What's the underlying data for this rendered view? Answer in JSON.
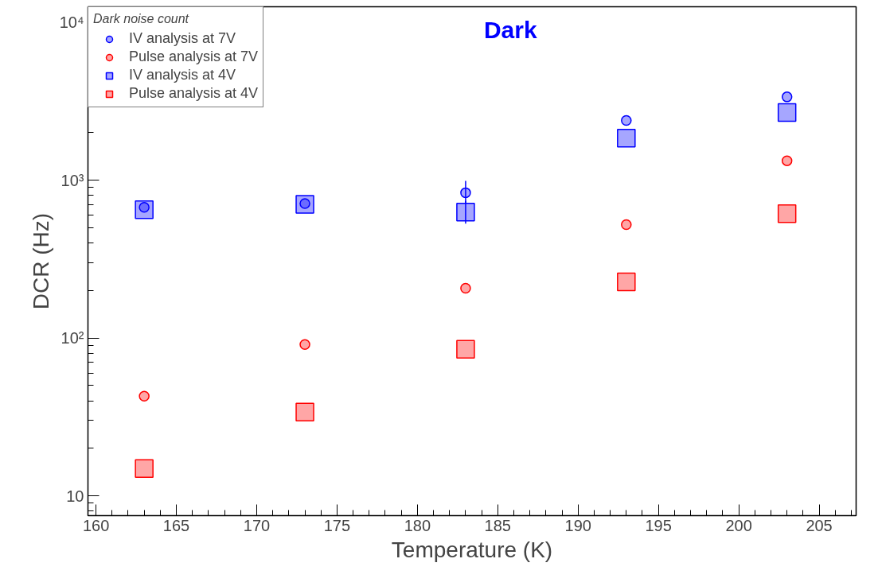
{
  "chart_data": {
    "type": "scatter",
    "title": "Dark",
    "xlabel": "Temperature (K)",
    "ylabel": "DCR (Hz)",
    "legend_title": "Dark noise count",
    "legend": "top left",
    "grid": false,
    "log": "y",
    "xlim": [
      159.5,
      207.3
    ],
    "xticks": [
      160,
      165,
      170,
      175,
      180,
      185,
      190,
      195,
      200,
      205
    ],
    "ylim": [
      7.5,
      12550
    ],
    "yticks": [
      10,
      {
        "value": 100,
        "label": "10²"
      },
      {
        "value": 1000,
        "label": "10³"
      },
      {
        "value": 10000,
        "label": "10⁴"
      }
    ],
    "x": [
      163,
      173,
      183,
      193,
      203
    ],
    "series": [
      {
        "name": "IV analysis at 7V",
        "color": "#0000ff",
        "marker": "circle",
        "values": [
          673,
          711,
          833,
          2390,
          3370
        ],
        "errors": [
          null,
          null,
          [
            720,
            990
          ],
          null,
          null
        ]
      },
      {
        "name": "Pulse analysis at 7V",
        "color": "#ff0000",
        "marker": "circle",
        "values": [
          42.8,
          91,
          207,
          523,
          1328
        ]
      },
      {
        "name": "IV analysis at 4V",
        "color": "#0000ff",
        "marker": "square",
        "values": [
          650,
          703,
          628,
          1845,
          2683
        ],
        "errors": [
          null,
          null,
          [
            530,
            740
          ],
          null,
          null
        ]
      },
      {
        "name": "Pulse analysis at 4V",
        "color": "#ff0000",
        "marker": "square",
        "values": [
          14.9,
          34,
          85,
          227,
          614
        ]
      }
    ]
  }
}
